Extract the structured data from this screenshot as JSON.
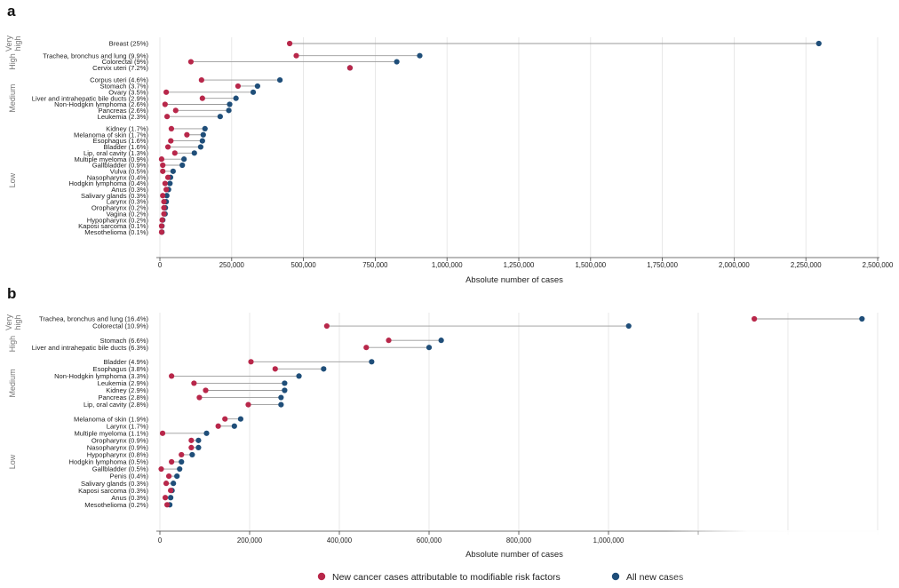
{
  "legend": {
    "attributable": {
      "label": "New cancer cases attributable to modifiable risk factors",
      "color": "#b8274a"
    },
    "all": {
      "label": "All new cases",
      "color": "#1f4e79"
    }
  },
  "chart_data": [
    {
      "panel": "a",
      "type": "dumbbell",
      "xlabel": "Absolute number of cases",
      "xlim": [
        0,
        2500000
      ],
      "xticks": [
        0,
        250000,
        500000,
        750000,
        1000000,
        1250000,
        1500000,
        1750000,
        2000000,
        2250000,
        2500000
      ],
      "xtick_labels": [
        "0",
        "250,000",
        "500,000",
        "750,000",
        "1,000,000",
        "1,250,000",
        "1,500,000",
        "1,750,000",
        "2,000,000",
        "2,250,000",
        "2,500,000"
      ],
      "groups": [
        {
          "name": "Very high",
          "lines": [
            "Very",
            "high"
          ],
          "items": [
            {
              "label": "Breast (25%)",
              "attributable": 452000,
              "all": 2295000
            }
          ]
        },
        {
          "name": "High",
          "lines": [
            "High"
          ],
          "items": [
            {
              "label": "Trachea, bronchus and lung (9.9%)",
              "attributable": 475000,
              "all": 905000
            },
            {
              "label": "Colorectal (9%)",
              "attributable": 108000,
              "all": 825000
            },
            {
              "label": "Cervix uteri (7.2%)",
              "attributable": 662000,
              "all": 662000
            }
          ]
        },
        {
          "name": "Medium",
          "lines": [
            "Medium"
          ],
          "items": [
            {
              "label": "Corpus uteri (4.6%)",
              "attributable": 145000,
              "all": 418000
            },
            {
              "label": "Stomach (3.7%)",
              "attributable": 272000,
              "all": 340000
            },
            {
              "label": "Ovary (3.5%)",
              "attributable": 22000,
              "all": 325000
            },
            {
              "label": "Liver and intrahepatic bile ducts (2.9%)",
              "attributable": 148000,
              "all": 265000
            },
            {
              "label": "Non-Hodgkin lymphoma (2.6%)",
              "attributable": 18000,
              "all": 243000
            },
            {
              "label": "Pancreas (2.6%)",
              "attributable": 55000,
              "all": 240000
            },
            {
              "label": "Leukemia (2.3%)",
              "attributable": 25000,
              "all": 210000
            }
          ]
        },
        {
          "name": "Low",
          "lines": [
            "Low"
          ],
          "items": [
            {
              "label": "Kidney (1.7%)",
              "attributable": 40000,
              "all": 157000
            },
            {
              "label": "Melanoma of skin (1.7%)",
              "attributable": 94000,
              "all": 151000
            },
            {
              "label": "Esophagus (1.6%)",
              "attributable": 38000,
              "all": 148000
            },
            {
              "label": "Bladder (1.6%)",
              "attributable": 28000,
              "all": 142000
            },
            {
              "label": "Lip, oral cavity (1.3%)",
              "attributable": 52000,
              "all": 120000
            },
            {
              "label": "Multiple myeloma (0.9%)",
              "attributable": 6000,
              "all": 84000
            },
            {
              "label": "Gallbladder (0.9%)",
              "attributable": 10000,
              "all": 78000
            },
            {
              "label": "Vulva (0.5%)",
              "attributable": 10000,
              "all": 46000
            },
            {
              "label": "Nasopharynx (0.4%)",
              "attributable": 28000,
              "all": 37000
            },
            {
              "label": "Hodgkin lymphoma (0.4%)",
              "attributable": 18000,
              "all": 35000
            },
            {
              "label": "Anus (0.3%)",
              "attributable": 22000,
              "all": 30000
            },
            {
              "label": "Salivary glands (0.3%)",
              "attributable": 10000,
              "all": 24000
            },
            {
              "label": "Larynx (0.3%)",
              "attributable": 14000,
              "all": 22000
            },
            {
              "label": "Oropharynx (0.2%)",
              "attributable": 14000,
              "all": 19000
            },
            {
              "label": "Vagina (0.2%)",
              "attributable": 14000,
              "all": 18000
            },
            {
              "label": "Hypopharynx (0.2%)",
              "attributable": 8000,
              "all": 10000
            },
            {
              "label": "Kaposi sarcoma (0.1%)",
              "attributable": 6000,
              "all": 7000
            },
            {
              "label": "Mesothelioma (0.1%)",
              "attributable": 6000,
              "all": 7000
            }
          ]
        }
      ]
    },
    {
      "panel": "b",
      "type": "dumbbell",
      "xlabel": "Absolute number of cases",
      "xlim": [
        0,
        1600000
      ],
      "xticks": [
        0,
        200000,
        400000,
        600000,
        800000,
        1000000,
        1200000,
        1400000,
        1600000
      ],
      "xtick_labels": [
        "0",
        "200,000",
        "400,000",
        "600,000",
        "800,000",
        "1,000,000",
        "",
        "",
        ""
      ],
      "groups": [
        {
          "name": "Very high",
          "lines": [
            "Very",
            "high"
          ],
          "items": [
            {
              "label": "Trachea, bronchus and lung (16.4%)",
              "attributable": 1325000,
              "all": 1565000
            },
            {
              "label": "Colorectal (10.9%)",
              "attributable": 372000,
              "all": 1045000
            }
          ]
        },
        {
          "name": "High",
          "lines": [
            "High"
          ],
          "items": [
            {
              "label": "Stomach (6.6%)",
              "attributable": 510000,
              "all": 627000
            },
            {
              "label": "Liver and intrahepatic bile ducts (6.3%)",
              "attributable": 460000,
              "all": 600000
            }
          ]
        },
        {
          "name": "Medium",
          "lines": [
            "Medium"
          ],
          "items": [
            {
              "label": "Bladder (4.9%)",
              "attributable": 203000,
              "all": 472000
            },
            {
              "label": "Esophagus (3.8%)",
              "attributable": 257000,
              "all": 365000
            },
            {
              "label": "Non-Hodgkin lymphoma (3.3%)",
              "attributable": 26000,
              "all": 310000
            },
            {
              "label": "Leukemia (2.9%)",
              "attributable": 76000,
              "all": 278000
            },
            {
              "label": "Kidney (2.9%)",
              "attributable": 102000,
              "all": 278000
            },
            {
              "label": "Pancreas (2.8%)",
              "attributable": 88000,
              "all": 270000
            },
            {
              "label": "Lip, oral cavity (2.8%)",
              "attributable": 197000,
              "all": 270000
            }
          ]
        },
        {
          "name": "Low",
          "lines": [
            "Low"
          ],
          "items": [
            {
              "label": "Melanoma of skin (1.9%)",
              "attributable": 145000,
              "all": 180000
            },
            {
              "label": "Larynx (1.7%)",
              "attributable": 130000,
              "all": 166000
            },
            {
              "label": "Multiple myeloma (1.1%)",
              "attributable": 6000,
              "all": 104000
            },
            {
              "label": "Oropharynx (0.9%)",
              "attributable": 70000,
              "all": 86000
            },
            {
              "label": "Nasopharynx (0.9%)",
              "attributable": 70000,
              "all": 86000
            },
            {
              "label": "Hypopharynx (0.8%)",
              "attributable": 48000,
              "all": 72000
            },
            {
              "label": "Hodgkin lymphoma (0.5%)",
              "attributable": 26000,
              "all": 48000
            },
            {
              "label": "Gallbladder (0.5%)",
              "attributable": 3000,
              "all": 44000
            },
            {
              "label": "Penis (0.4%)",
              "attributable": 20000,
              "all": 38000
            },
            {
              "label": "Salivary glands (0.3%)",
              "attributable": 14000,
              "all": 30000
            },
            {
              "label": "Kaposi sarcoma (0.3%)",
              "attributable": 24000,
              "all": 27000
            },
            {
              "label": "Anus (0.3%)",
              "attributable": 12000,
              "all": 24000
            },
            {
              "label": "Mesothelioma (0.2%)",
              "attributable": 16000,
              "all": 22000
            }
          ]
        }
      ]
    }
  ]
}
